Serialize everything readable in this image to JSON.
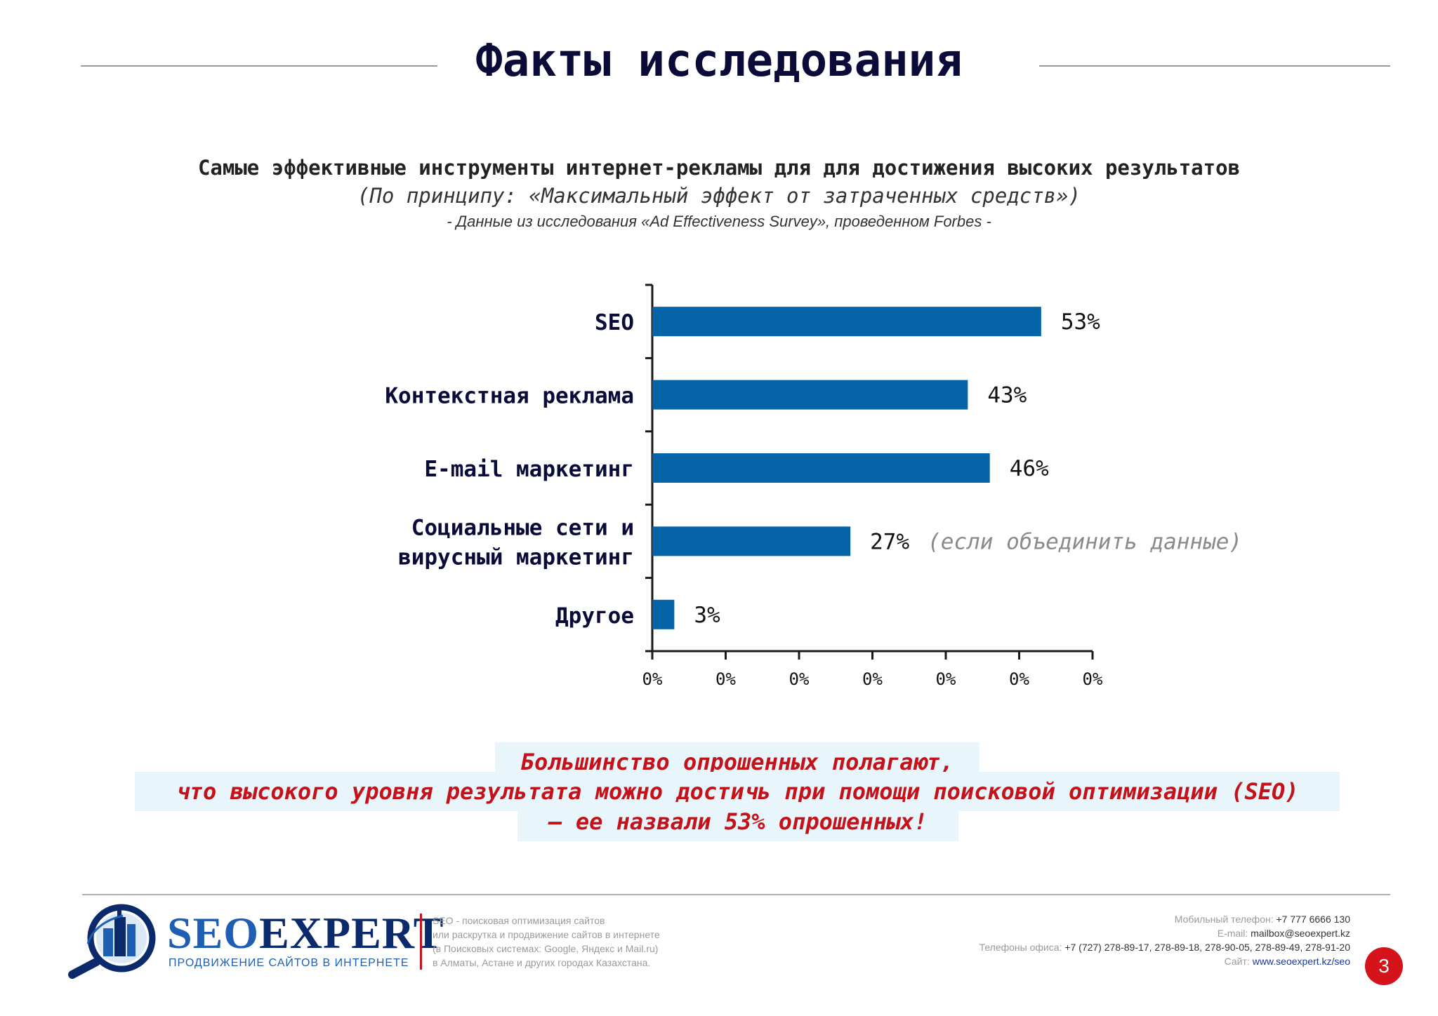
{
  "header": {
    "title": "Факты исследования"
  },
  "subtitle": "Самые эффективные инструменты интернет-рекламы для для достижения высоких результатов",
  "subtitle2": "(По принципу: «Максимальный эффект от затраченных средств»)",
  "source": "- Данные из исследования «Ad Effectiveness Survey», проведенном Forbes -",
  "chart_data": {
    "type": "bar",
    "orientation": "horizontal",
    "categories": [
      "SEO",
      "Контекстная реклама",
      "E-mail маркетинг",
      "Социальные сети и\nвирусный маркетинг",
      "Другое"
    ],
    "values": [
      53,
      43,
      46,
      27,
      3
    ],
    "value_labels": [
      "53%",
      "43%",
      "46%",
      "27%",
      "3%"
    ],
    "annotations": [
      "",
      "",
      "",
      "(если объединить данные)",
      ""
    ],
    "x_tick_labels": [
      "0%",
      "0%",
      "0%",
      "0%",
      "0%",
      "0%",
      "0%"
    ],
    "xlim": [
      0,
      60
    ],
    "bar_color": "#0563a8",
    "grid": false
  },
  "callout": {
    "line1": "Большинство опрошенных полагают,",
    "line2": "что высокого уровня результата можно достичь при помощи поисковой оптимизации (SEO)",
    "line3": "– ее назвали 53% опрошенных!",
    "text_color": "#c4121a",
    "bg_color": "#e8f6fb"
  },
  "footer": {
    "brand_seo": "SEO",
    "brand_expert": "EXPERT",
    "tagline": "ПРОДВИЖЕНИЕ САЙТОВ В ИНТЕРНЕТЕ",
    "desc": [
      "SEO - поисковая оптимизация сайтов",
      "или раскрутка и продвижение сайтов в интернете",
      "(в Поисковых системах: Google, Яндекс и Mail.ru)",
      "в Алматы, Астане и других городах Казахстана."
    ],
    "mobile_label": "Мобильный телефон:",
    "mobile_value": "+7 777 6666 130",
    "email_label": "E-mail:",
    "email_value": "mailbox@seoexpert.kz",
    "office_label": "Телефоны офиса:",
    "office_value": "+7 (727) 278-89-17, 278-89-18, 278-90-05, 278-89-49, 278-91-20",
    "site_label": "Сайт:",
    "site_value": "www.seoexpert.kz/seo",
    "page_number": "3",
    "logo_icon": "magnifier-buildings-icon"
  }
}
